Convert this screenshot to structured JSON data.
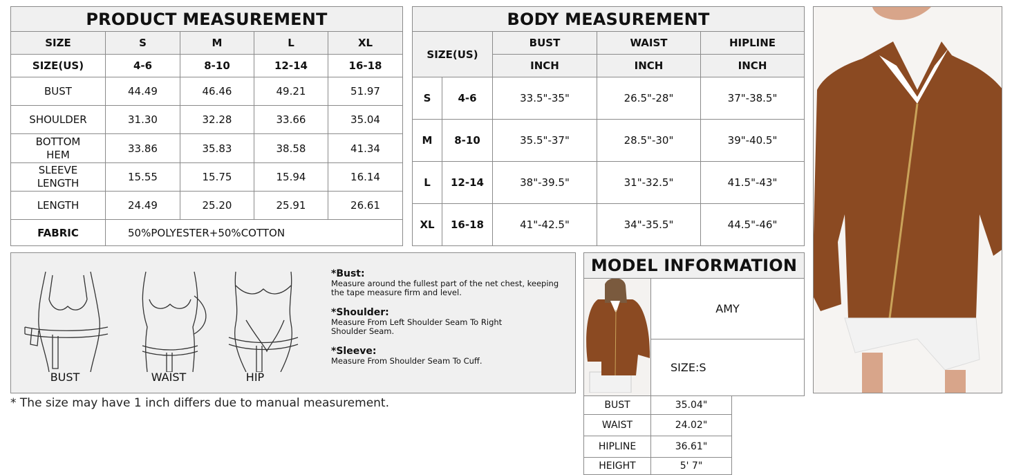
{
  "product": {
    "title": "PRODUCT MEASUREMENT",
    "header": [
      "SIZE",
      "S",
      "M",
      "L",
      "XL"
    ],
    "us_row": [
      "SIZE(US)",
      "4-6",
      "8-10",
      "12-14",
      "16-18"
    ],
    "rows": [
      [
        "BUST",
        "44.49",
        "46.46",
        "49.21",
        "51.97"
      ],
      [
        "SHOULDER",
        "31.30",
        "32.28",
        "33.66",
        "35.04"
      ],
      [
        "BOTTOM HEM",
        "33.86",
        "35.83",
        "38.58",
        "41.34"
      ],
      [
        "SLEEVE LENGTH",
        "15.55",
        "15.75",
        "15.94",
        "16.14"
      ],
      [
        "LENGTH",
        "24.49",
        "25.20",
        "25.91",
        "26.61"
      ]
    ],
    "fabric_label": "FABRIC",
    "fabric_value": "50%POLYESTER+50%COTTON"
  },
  "body": {
    "title": "BODY MEASUREMENT",
    "size_label": "SIZE(US)",
    "columns": [
      "BUST",
      "WAIST",
      "HIPLINE"
    ],
    "unit": "INCH",
    "rows": [
      [
        "S",
        "4-6",
        "33.5\"-35\"",
        "26.5\"-28\"",
        "37\"-38.5\""
      ],
      [
        "M",
        "8-10",
        "35.5\"-37\"",
        "28.5\"-30\"",
        "39\"-40.5\""
      ],
      [
        "L",
        "12-14",
        "38\"-39.5\"",
        "31\"-32.5\"",
        "41.5\"-43\""
      ],
      [
        "XL",
        "16-18",
        "41\"-42.5\"",
        "34\"-35.5\"",
        "44.5\"-46\""
      ]
    ]
  },
  "guide": {
    "figures": [
      "BUST",
      "WAIST",
      "HIP"
    ],
    "notes": [
      {
        "title": "*Bust:",
        "text": "Measure around the fullest part of the net chest, keeping the tape measure firm and level."
      },
      {
        "title": "*Shoulder:",
        "text": "Measure From Left Shoulder Seam To Right Shoulder Seam."
      },
      {
        "title": "*Sleeve:",
        "text": "Measure From Shoulder Seam To Cuff."
      }
    ]
  },
  "model": {
    "title": "MODEL INFORMATION",
    "name": "AMY",
    "size": "SIZE:S",
    "rows": [
      [
        "BUST",
        "35.04\""
      ],
      [
        "WAIST",
        "24.02\""
      ],
      [
        "HIPLINE",
        "36.61\""
      ],
      [
        "HEIGHT",
        "5' 7\""
      ]
    ]
  },
  "footnote": "* The size may have 1 inch differs due to manual measurement.",
  "colors": {
    "hoodie": "#8b4a22",
    "panel": "#f0f0f0",
    "border": "#8a8a8a"
  }
}
